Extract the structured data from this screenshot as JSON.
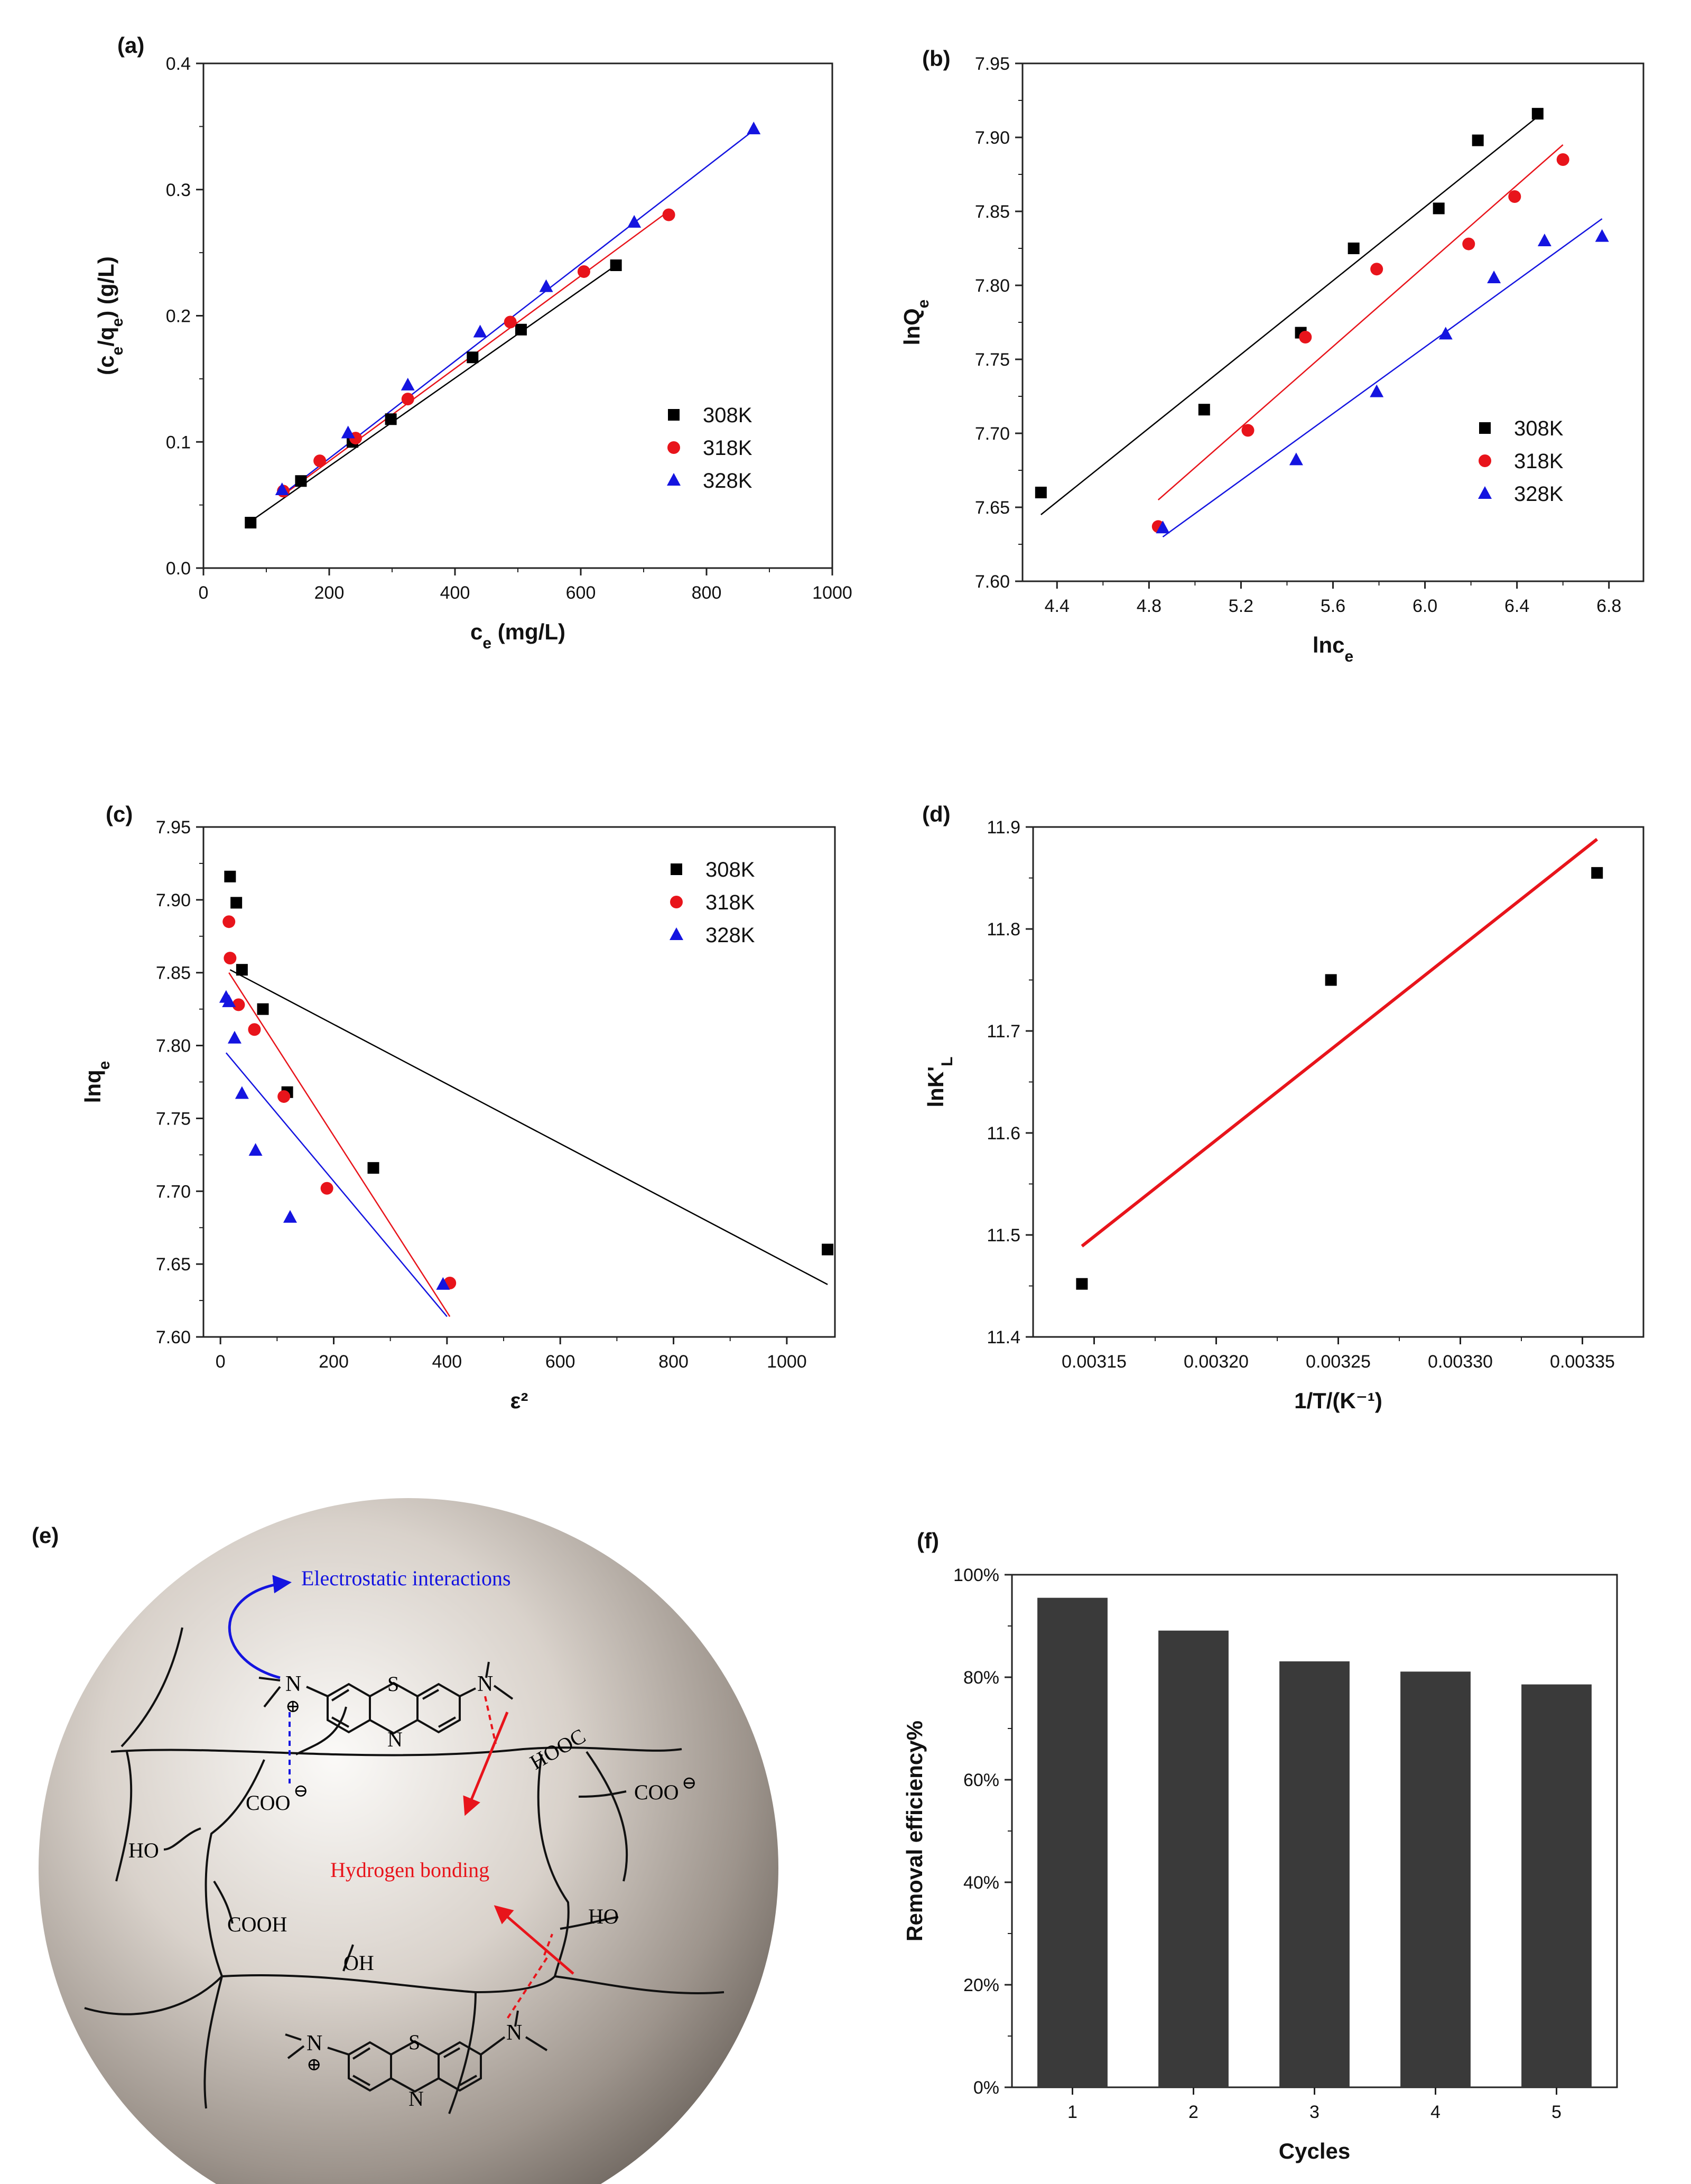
{
  "series_names": [
    "308K",
    "318K",
    "328K"
  ],
  "colors": {
    "308K": "#000000",
    "318K": "#e8141b",
    "328K": "#1414e0",
    "bar": "#3a3a3a"
  },
  "chart_data": [
    {
      "panel": "(a)",
      "type": "scatter",
      "xlabel": "c_e (mg/L)",
      "ylabel": "(c_e/q_e) (g/L)",
      "xlim": [
        0,
        1000
      ],
      "ylim": [
        0.0,
        0.4
      ],
      "xticks": [
        0,
        200,
        400,
        600,
        800,
        1000
      ],
      "yticks": [
        0.0,
        0.1,
        0.2,
        0.3,
        0.4
      ],
      "ydec": 1,
      "legend": "bottom-right",
      "series": [
        {
          "name": "308K",
          "marker": "square",
          "x": [
            75,
            155,
            237,
            298,
            428,
            505,
            656
          ],
          "y": [
            0.036,
            0.069,
            0.1,
            0.118,
            0.167,
            0.189,
            0.24
          ],
          "fit": [
            [
              75,
              0.037
            ],
            [
              656,
              0.24
            ]
          ]
        },
        {
          "name": "318K",
          "marker": "circle",
          "x": [
            127,
            185,
            242,
            325,
            488,
            605,
            740
          ],
          "y": [
            0.061,
            0.085,
            0.103,
            0.134,
            0.195,
            0.235,
            0.28
          ],
          "fit": [
            [
              127,
              0.058
            ],
            [
              740,
              0.283
            ]
          ]
        },
        {
          "name": "328K",
          "marker": "triangle",
          "x": [
            125,
            230,
            325,
            440,
            545,
            685,
            875
          ],
          "y": [
            0.062,
            0.107,
            0.145,
            0.187,
            0.223,
            0.274,
            0.348
          ],
          "fit": [
            [
              125,
              0.058
            ],
            [
              875,
              0.347
            ]
          ]
        }
      ]
    },
    {
      "panel": "(b)",
      "type": "scatter",
      "xlabel": "lnc_e",
      "ylabel": "lnQ_e",
      "xlim": [
        4.25,
        6.95
      ],
      "ylim": [
        7.6,
        7.95
      ],
      "xticks": [
        4.4,
        4.8,
        5.2,
        5.6,
        6.0,
        6.4,
        6.8
      ],
      "xdec": 1,
      "yticks": [
        7.6,
        7.65,
        7.7,
        7.75,
        7.8,
        7.85,
        7.9,
        7.95
      ],
      "ydec": 2,
      "legend": "bottom-right",
      "series": [
        {
          "name": "308K",
          "marker": "square",
          "x": [
            4.33,
            5.04,
            5.46,
            5.69,
            6.06,
            6.23,
            6.49
          ],
          "y": [
            7.66,
            7.716,
            7.768,
            7.825,
            7.852,
            7.898,
            7.916
          ],
          "fit": [
            [
              4.33,
              7.645
            ],
            [
              6.49,
              7.914
            ]
          ]
        },
        {
          "name": "318K",
          "marker": "circle",
          "x": [
            4.84,
            5.23,
            5.48,
            5.79,
            6.19,
            6.39,
            6.6
          ],
          "y": [
            7.637,
            7.702,
            7.765,
            7.811,
            7.828,
            7.86,
            7.885
          ],
          "fit": [
            [
              4.84,
              7.655
            ],
            [
              6.6,
              7.895
            ]
          ]
        },
        {
          "name": "328K",
          "marker": "triangle",
          "x": [
            4.86,
            5.44,
            5.79,
            6.09,
            6.3,
            6.52,
            6.77
          ],
          "y": [
            7.636,
            7.682,
            7.728,
            7.767,
            7.805,
            7.83,
            7.833
          ],
          "fit": [
            [
              4.86,
              7.63
            ],
            [
              6.77,
              7.845
            ]
          ]
        }
      ]
    },
    {
      "panel": "(c)",
      "type": "scatter",
      "xlabel": "ε²",
      "ylabel": "lnq_e",
      "xlim": [
        -30,
        1085
      ],
      "ylim": [
        7.6,
        7.95
      ],
      "xticks": [
        0,
        200,
        400,
        600,
        800,
        1000
      ],
      "yticks": [
        7.6,
        7.65,
        7.7,
        7.75,
        7.8,
        7.85,
        7.9,
        7.95
      ],
      "ydec": 2,
      "legend": "top-right",
      "series": [
        {
          "name": "308K",
          "marker": "square",
          "x": [
            17,
            28,
            38,
            75,
            118,
            270,
            1072
          ],
          "y": [
            7.916,
            7.898,
            7.852,
            7.825,
            7.768,
            7.716,
            7.66
          ],
          "fit": [
            [
              17,
              7.852
            ],
            [
              1072,
              7.636
            ]
          ]
        },
        {
          "name": "318K",
          "marker": "circle",
          "x": [
            15,
            17,
            32,
            60,
            112,
            188,
            405
          ],
          "y": [
            7.885,
            7.86,
            7.828,
            7.811,
            7.765,
            7.702,
            7.637
          ],
          "fit": [
            [
              15,
              7.85
            ],
            [
              405,
              7.614
            ]
          ]
        },
        {
          "name": "328K",
          "marker": "triangle",
          "x": [
            10,
            15,
            25,
            38,
            62,
            123,
            393
          ],
          "y": [
            7.833,
            7.83,
            7.805,
            7.767,
            7.728,
            7.682,
            7.636
          ],
          "fit": [
            [
              10,
              7.795
            ],
            [
              400,
              7.614
            ]
          ]
        }
      ]
    },
    {
      "panel": "(d)",
      "type": "scatter",
      "xlabel": "1/T/(K⁻¹)",
      "ylabel": "lnK'_L",
      "xlim": [
        0.003125,
        0.003375
      ],
      "ylim": [
        11.4,
        11.9
      ],
      "xticks": [
        0.00315,
        0.0032,
        0.00325,
        0.0033,
        0.00335
      ],
      "xdec": 5,
      "yticks": [
        11.4,
        11.5,
        11.6,
        11.7,
        11.8,
        11.9
      ],
      "ydec": 1,
      "series": [
        {
          "name": "",
          "marker": "square",
          "x": [
            0.003145,
            0.003247,
            0.003356
          ],
          "y": [
            11.452,
            11.75,
            11.855
          ],
          "fit": [
            [
              0.003145,
              11.489
            ],
            [
              0.003356,
              11.888
            ]
          ],
          "fitColor": "#e8141b"
        }
      ]
    },
    {
      "panel": "(f)",
      "type": "bar",
      "xlabel": "Cycles",
      "ylabel": "Removal efficiency%",
      "categories": [
        "1",
        "2",
        "3",
        "4",
        "5"
      ],
      "values": [
        95.5,
        89.1,
        83.1,
        81.1,
        78.6
      ],
      "ylim": [
        0,
        100
      ],
      "yticks": [
        0,
        20,
        40,
        60,
        80,
        100
      ],
      "ysuffix": "%"
    }
  ],
  "diagram": {
    "panel": "(e)",
    "labels": {
      "electrostatic": "Electrostatic interactions",
      "hydrogen": "Hydrogen bonding",
      "coo1": "COO",
      "coo2": "COO",
      "hooc": "HOOC",
      "ho1": "HO",
      "ho2": "HO",
      "cooh": "COOH",
      "oh": "OH",
      "s1": "S",
      "s2": "S",
      "n1": "N",
      "n2": "N",
      "n3": "N",
      "n4": "N",
      "n5": "N",
      "n6": "N",
      "plus1": "⊕",
      "plus2": "⊕",
      "minus1": "⊖",
      "minus2": "⊖"
    }
  }
}
